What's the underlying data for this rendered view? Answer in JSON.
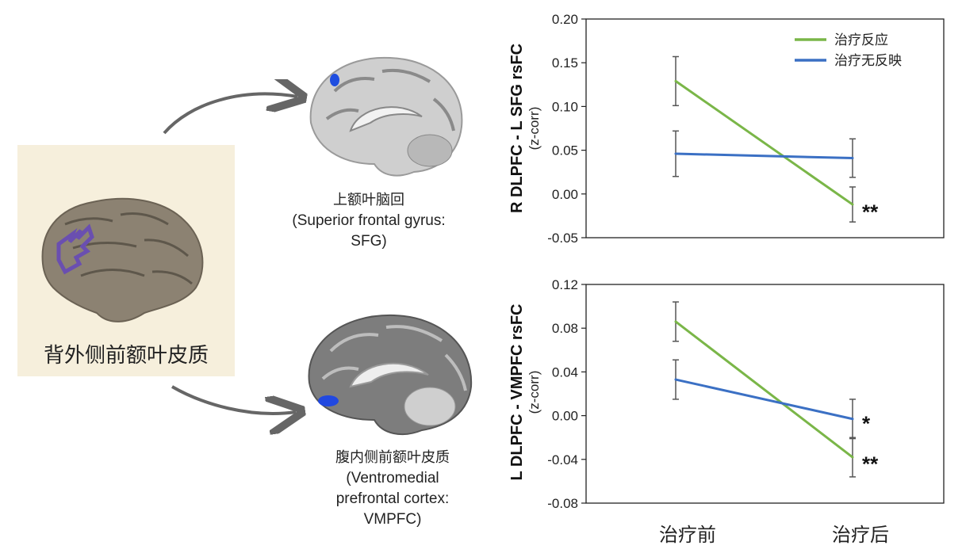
{
  "figure": {
    "lateral_region_label": "背外侧前额叶皮质",
    "top_region": {
      "zh": "上额叶脑回",
      "en_line1": "(Superior frontal gyrus:",
      "en_line2": "SFG)"
    },
    "bottom_region": {
      "zh": "腹内侧前额叶皮质",
      "en_line1": "(Ventromedial",
      "en_line2": "prefrontal cortex:",
      "en_line3": "VMPFC)"
    },
    "x_categories": [
      "治疗前",
      "治疗后"
    ]
  },
  "chart_data": [
    {
      "type": "line",
      "ylabel": "R DLPFC - L SFG rsFC",
      "ylabel_sub": "(z-corr)",
      "ylim": [
        -0.05,
        0.2
      ],
      "yticks": [
        -0.05,
        0.0,
        0.05,
        0.1,
        0.15,
        0.2
      ],
      "ytick_labels": [
        "-0.05",
        "0.00",
        "0.05",
        "0.10",
        "0.15",
        "0.20"
      ],
      "categories": [
        "治疗前",
        "治疗后"
      ],
      "legend_position": "top-right",
      "series": [
        {
          "name": "治疗反应",
          "color": "#7ab648",
          "values": [
            0.129,
            -0.012
          ],
          "errors": [
            0.028,
            0.02
          ]
        },
        {
          "name": "治疗无反映",
          "color": "#3b70c4",
          "values": [
            0.046,
            0.041
          ],
          "errors": [
            0.026,
            0.022
          ]
        }
      ],
      "annotations": [
        {
          "text": "**",
          "category": "治疗后",
          "y": -0.018
        }
      ]
    },
    {
      "type": "line",
      "ylabel": "L DLPFC - VMPFC rsFC",
      "ylabel_sub": "(z-corr)",
      "ylim": [
        -0.08,
        0.12
      ],
      "yticks": [
        -0.08,
        -0.04,
        0.0,
        0.04,
        0.08,
        0.12
      ],
      "ytick_labels": [
        "-0.08",
        "-0.04",
        "0.00",
        "0.04",
        "0.08",
        "0.12"
      ],
      "categories": [
        "治疗前",
        "治疗后"
      ],
      "series": [
        {
          "name": "治疗反应",
          "color": "#7ab648",
          "values": [
            0.086,
            -0.038
          ],
          "errors": [
            0.018,
            0.018
          ]
        },
        {
          "name": "治疗无反映",
          "color": "#3b70c4",
          "values": [
            0.033,
            -0.003
          ],
          "errors": [
            0.018,
            0.018
          ]
        }
      ],
      "annotations": [
        {
          "text": "*",
          "category": "治疗后",
          "y": -0.005
        },
        {
          "text": "**",
          "category": "治疗后",
          "y": -0.042
        }
      ]
    }
  ]
}
